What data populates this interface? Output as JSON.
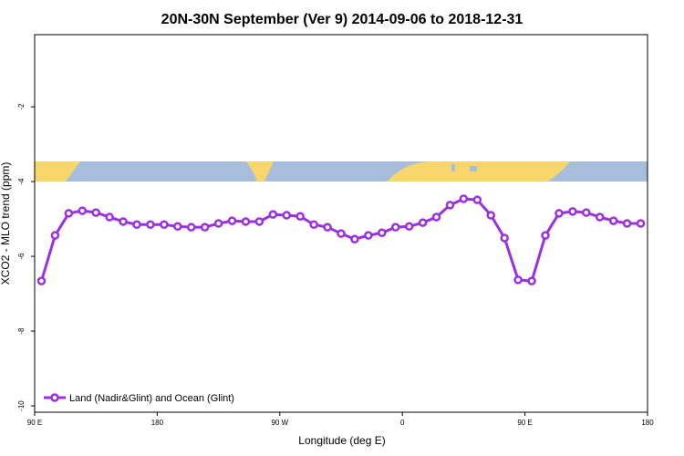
{
  "chart_data": {
    "type": "line",
    "title": "20N-30N September (Ver 9)   2014-09-06 to 2018-12-31",
    "x_label": "Longitude (deg E)",
    "y_label": "XCO2 - MLO trend (ppm)",
    "x": [
      95,
      105,
      115,
      125,
      135,
      145,
      155,
      165,
      175,
      185,
      195,
      205,
      215,
      225,
      235,
      245,
      255,
      265,
      275,
      285,
      295,
      305,
      315,
      325,
      335,
      345,
      355,
      365,
      375,
      385,
      395,
      405,
      415,
      425,
      435,
      445,
      455,
      465,
      475,
      485,
      495,
      505,
      515,
      525,
      535
    ],
    "series": [
      {
        "name": "Land (Nadir&Glint) and Ocean (Glint)",
        "color": "#9b30e0",
        "values": [
          -6.66,
          -5.44,
          -4.85,
          -4.78,
          -4.83,
          -4.95,
          -5.07,
          -5.15,
          -5.15,
          -5.15,
          -5.2,
          -5.22,
          -5.22,
          -5.12,
          -5.05,
          -5.07,
          -5.07,
          -4.88,
          -4.9,
          -4.93,
          -5.15,
          -5.22,
          -5.39,
          -5.54,
          -5.44,
          -5.37,
          -5.22,
          -5.2,
          -5.1,
          -4.95,
          -4.63,
          -4.46,
          -4.49,
          -4.9,
          -5.51,
          -6.63,
          -6.66,
          -5.44,
          -4.85,
          -4.8,
          -4.83,
          -4.95,
          -5.05,
          -5.12,
          -5.12
        ]
      }
    ],
    "xlim": [
      90,
      540
    ],
    "xticks": [
      {
        "value": 90,
        "label": "90 E"
      },
      {
        "value": 180,
        "label": "180"
      },
      {
        "value": 270,
        "label": "90 W"
      },
      {
        "value": 360,
        "label": "0"
      },
      {
        "value": 450,
        "label": "90 E"
      },
      {
        "value": 540,
        "label": "180"
      }
    ],
    "ylim": [
      -10.17,
      -0.07
    ],
    "yticks": [
      -10,
      -8,
      -6,
      -4,
      -2
    ],
    "legend": "bottom-left"
  }
}
